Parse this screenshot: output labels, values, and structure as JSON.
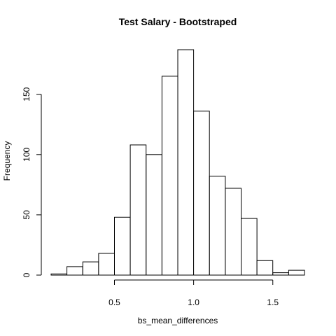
{
  "chart_data": {
    "type": "bar",
    "title": "Test Salary - Bootstraped",
    "xlabel": "bs_mean_differences",
    "ylabel": "Frequency",
    "bin_edges": [
      0.1,
      0.2,
      0.3,
      0.4,
      0.5,
      0.6,
      0.7,
      0.8,
      0.9,
      1.0,
      1.1,
      1.2,
      1.3,
      1.4,
      1.5,
      1.6,
      1.7
    ],
    "values": [
      1,
      7,
      11,
      18,
      48,
      108,
      100,
      165,
      187,
      136,
      82,
      72,
      47,
      12,
      2,
      4
    ],
    "x_ticks": [
      0.5,
      1.0,
      1.5
    ],
    "x_tick_labels": [
      "0.5",
      "1.0",
      "1.5"
    ],
    "y_ticks": [
      0,
      50,
      100,
      150
    ],
    "y_tick_labels": [
      "0",
      "50",
      "100",
      "150"
    ],
    "xlim": [
      0.1,
      1.7
    ],
    "ylim": [
      0,
      187
    ],
    "grid": false,
    "colors": {
      "bar_fill": "#ffffff",
      "bar_stroke": "#000000"
    }
  }
}
